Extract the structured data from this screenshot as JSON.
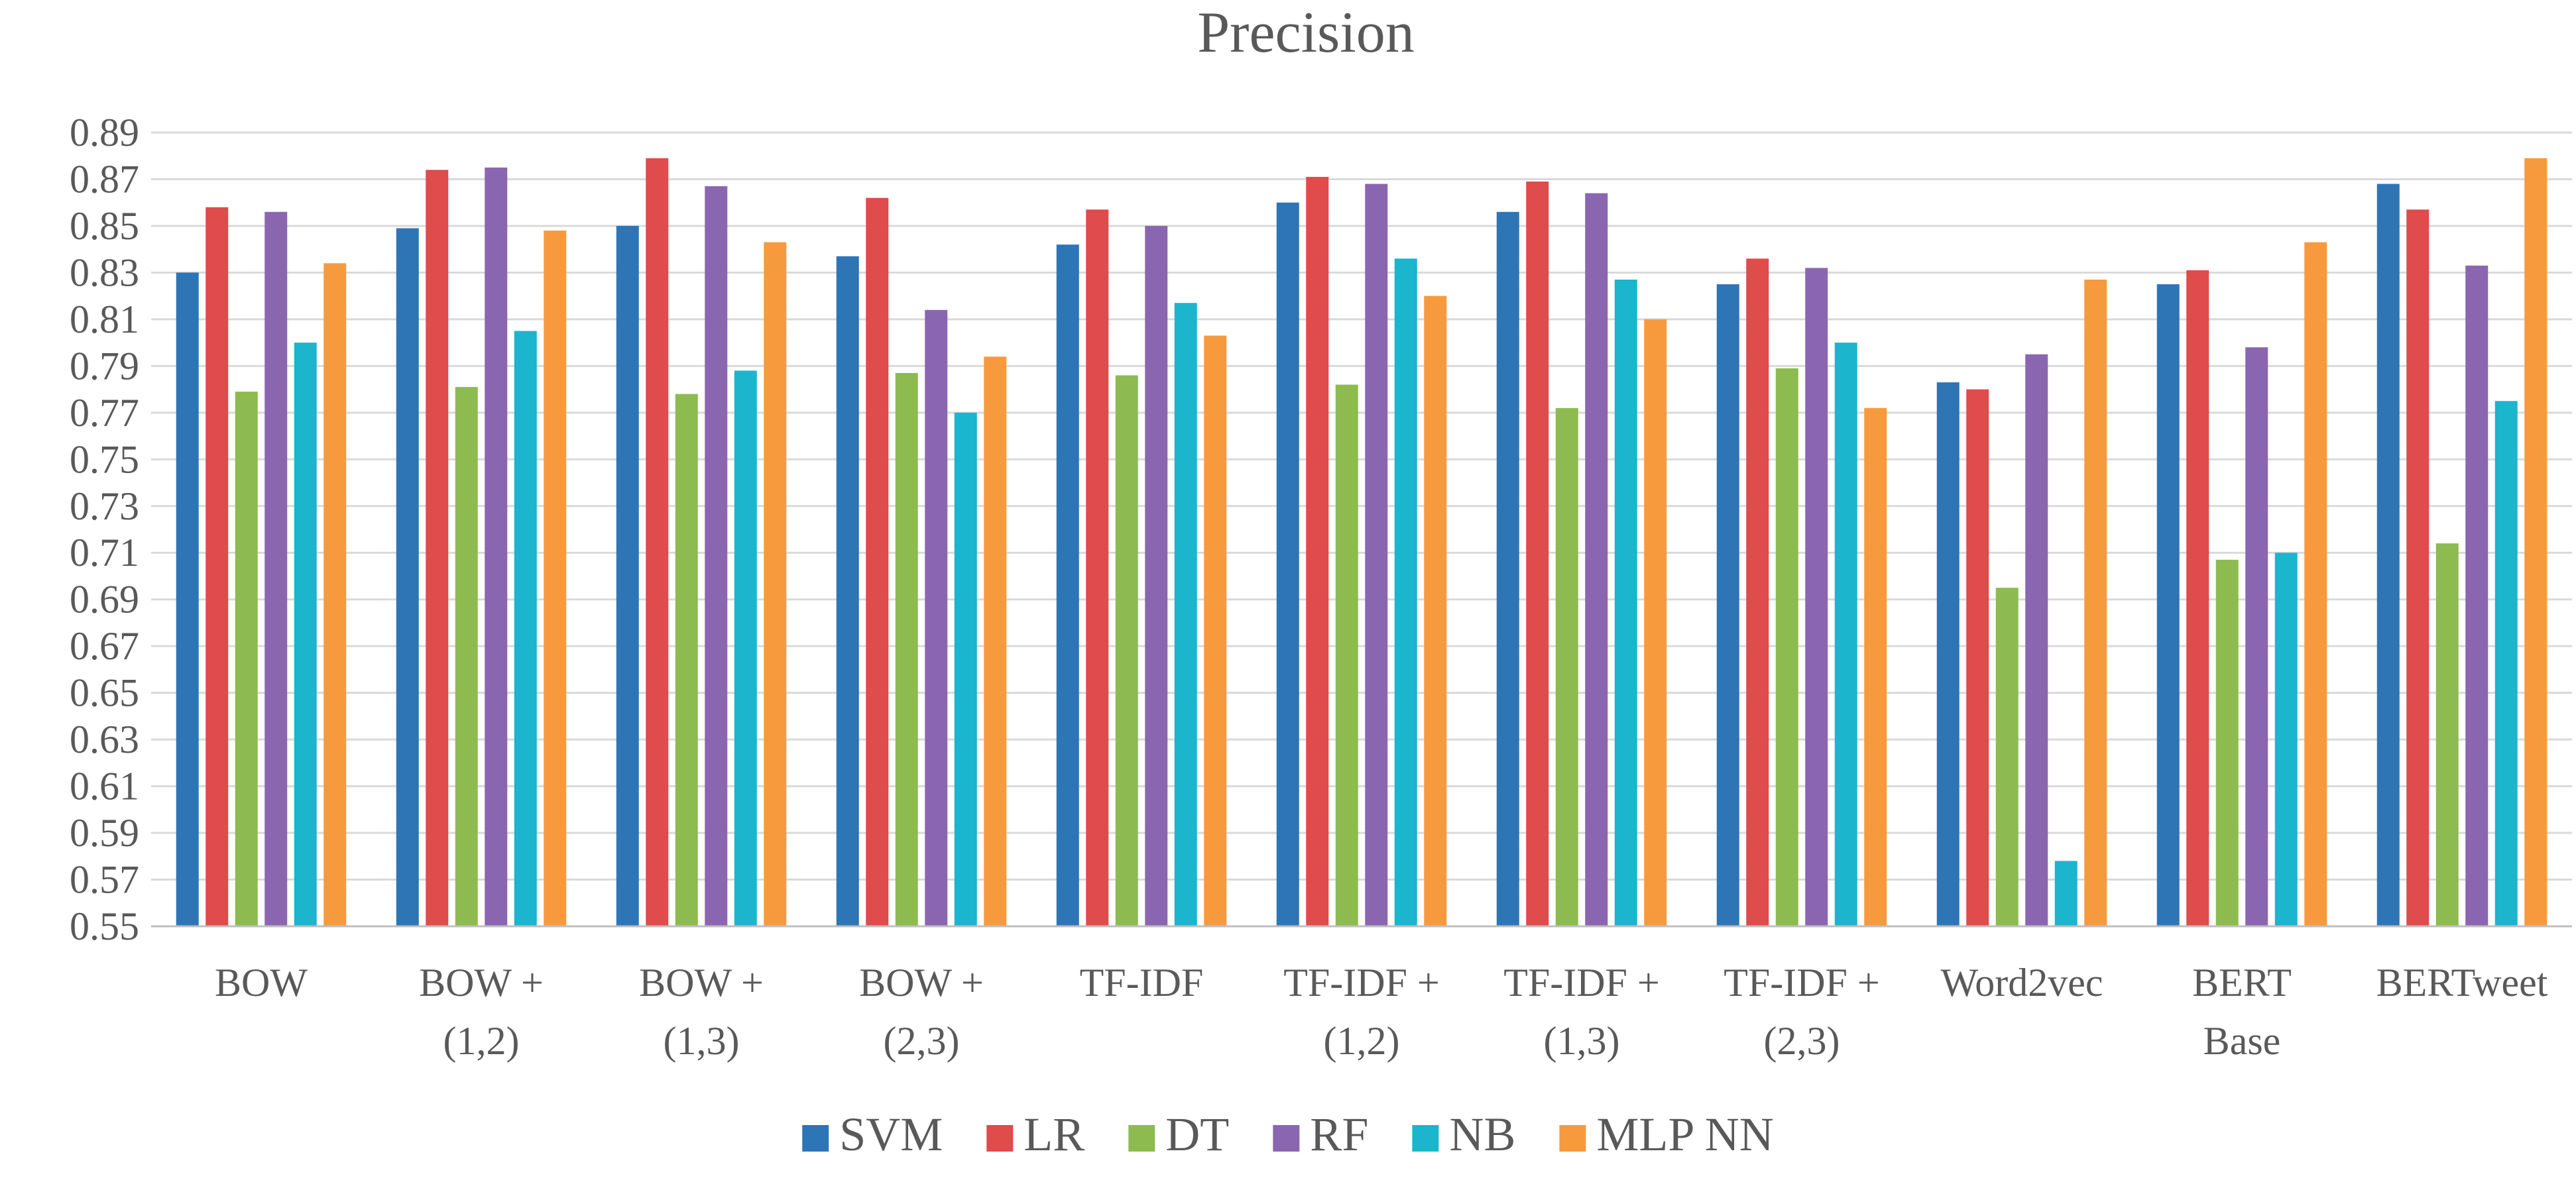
{
  "chart_data": {
    "type": "bar",
    "title": "Precision",
    "xlabel": "",
    "ylabel": "",
    "ylim": [
      0.55,
      0.89
    ],
    "yticks": [
      "0.55",
      "0.57",
      "0.59",
      "0.61",
      "0.63",
      "0.65",
      "0.67",
      "0.69",
      "0.71",
      "0.73",
      "0.75",
      "0.77",
      "0.79",
      "0.81",
      "0.83",
      "0.85",
      "0.87",
      "0.89"
    ],
    "grid": true,
    "legend_position": "bottom",
    "categories": [
      [
        "BOW"
      ],
      [
        "BOW +",
        "(1,2)"
      ],
      [
        "BOW +",
        "(1,3)"
      ],
      [
        "BOW +",
        "(2,3)"
      ],
      [
        "TF-IDF"
      ],
      [
        "TF-IDF +",
        "(1,2)"
      ],
      [
        "TF-IDF +",
        "(1,3)"
      ],
      [
        "TF-IDF +",
        "(2,3)"
      ],
      [
        "Word2vec"
      ],
      [
        "BERT",
        "Base"
      ],
      [
        "BERTweet"
      ]
    ],
    "series": [
      {
        "name": "SVM",
        "color": "#2E75B6",
        "values": [
          0.83,
          0.849,
          0.85,
          0.837,
          0.842,
          0.86,
          0.856,
          0.825,
          0.783,
          0.825,
          0.868
        ]
      },
      {
        "name": "LR",
        "color": "#E04B4B",
        "values": [
          0.858,
          0.874,
          0.879,
          0.862,
          0.857,
          0.871,
          0.869,
          0.836,
          0.78,
          0.831,
          0.857
        ]
      },
      {
        "name": "DT",
        "color": "#8DBB4F",
        "values": [
          0.779,
          0.781,
          0.778,
          0.787,
          0.786,
          0.782,
          0.772,
          0.789,
          0.695,
          0.707,
          0.714
        ]
      },
      {
        "name": "RF",
        "color": "#8B66B0",
        "values": [
          0.856,
          0.875,
          0.867,
          0.814,
          0.85,
          0.868,
          0.864,
          0.832,
          0.795,
          0.798,
          0.833
        ]
      },
      {
        "name": "NB",
        "color": "#1BB5CE",
        "values": [
          0.8,
          0.805,
          0.788,
          0.77,
          0.817,
          0.836,
          0.827,
          0.8,
          0.578,
          0.71,
          0.775
        ]
      },
      {
        "name": "MLP NN",
        "color": "#F79A3E",
        "values": [
          0.834,
          0.848,
          0.843,
          0.794,
          0.803,
          0.82,
          0.81,
          0.772,
          0.827,
          0.843,
          0.879
        ]
      }
    ]
  }
}
